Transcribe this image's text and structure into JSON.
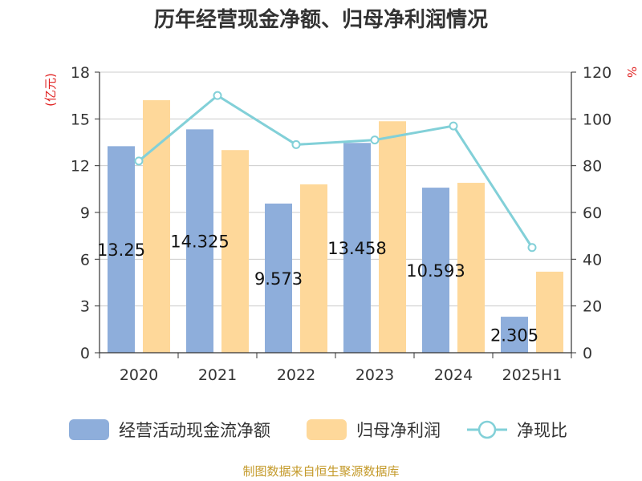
{
  "chart_data": {
    "type": "bar",
    "title": "历年经营现金净额、归母净利润情况",
    "categories": [
      "2020",
      "2021",
      "2022",
      "2023",
      "2024",
      "2025H1"
    ],
    "left_axis": {
      "unit_label": "(亿元)",
      "ylim": [
        0,
        18
      ],
      "ticks": [
        "0",
        "3",
        "6",
        "9",
        "12",
        "15",
        "18"
      ]
    },
    "right_axis": {
      "unit_label": "%",
      "ylim": [
        0,
        120
      ],
      "ticks": [
        "0",
        "20",
        "40",
        "60",
        "80",
        "100",
        "120"
      ]
    },
    "series": [
      {
        "name": "经营活动现金流净额",
        "kind": "bar",
        "axis": "left",
        "color": "#8eaedb",
        "values": [
          13.25,
          14.33,
          9.57,
          13.46,
          10.59,
          2.31
        ],
        "data_labels": [
          "13.25",
          "14.325",
          "9.573",
          "13.458",
          "10.593",
          "2.305"
        ]
      },
      {
        "name": "归母净利润",
        "kind": "bar",
        "axis": "left",
        "color": "#fed89a",
        "values": [
          16.2,
          13.0,
          10.8,
          14.85,
          10.9,
          5.2
        ]
      },
      {
        "name": "净现比",
        "kind": "line",
        "axis": "right",
        "color": "#82d0d8",
        "values": [
          82,
          110,
          89,
          91,
          97,
          45
        ]
      }
    ],
    "grid": true,
    "legend_position": "bottom"
  },
  "source_text": "制图数据来自恒生聚源数据库"
}
